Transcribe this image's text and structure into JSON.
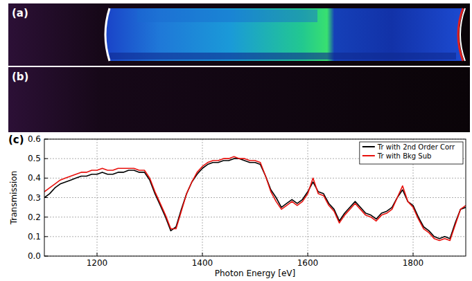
{
  "panels": [
    {
      "label": "(a)"
    },
    {
      "label": "(b)"
    },
    {
      "label": "(c)"
    }
  ],
  "chart_data": {
    "type": "line",
    "x_label": "Photon Energy [eV]",
    "y_label": "Transmission",
    "xlim": [
      1100,
      1900
    ],
    "xticks": [
      1200,
      1400,
      1600,
      1800
    ],
    "ylim": [
      0,
      0.6
    ],
    "yticks": [
      {
        "value": 0,
        "label": "0.0"
      },
      0.1,
      0.2,
      0.3,
      0.4,
      0.5,
      0.6
    ],
    "grid": true,
    "legend": "upper right",
    "x": [
      1100,
      1110,
      1120,
      1130,
      1140,
      1150,
      1160,
      1170,
      1180,
      1190,
      1200,
      1210,
      1220,
      1230,
      1240,
      1250,
      1260,
      1270,
      1280,
      1290,
      1300,
      1310,
      1320,
      1330,
      1340,
      1350,
      1360,
      1370,
      1380,
      1390,
      1400,
      1410,
      1420,
      1430,
      1440,
      1450,
      1460,
      1470,
      1480,
      1490,
      1500,
      1510,
      1520,
      1530,
      1540,
      1550,
      1560,
      1570,
      1580,
      1590,
      1600,
      1610,
      1620,
      1630,
      1640,
      1650,
      1660,
      1670,
      1680,
      1690,
      1700,
      1710,
      1720,
      1730,
      1740,
      1750,
      1760,
      1770,
      1780,
      1790,
      1800,
      1810,
      1820,
      1830,
      1840,
      1850,
      1860,
      1870,
      1880,
      1890,
      1900
    ],
    "series": [
      {
        "name": "Tr with 2nd Order Corr",
        "color": "#000000",
        "values": [
          0.3,
          0.32,
          0.35,
          0.37,
          0.38,
          0.39,
          0.4,
          0.41,
          0.41,
          0.42,
          0.42,
          0.43,
          0.42,
          0.42,
          0.43,
          0.43,
          0.44,
          0.44,
          0.43,
          0.43,
          0.39,
          0.32,
          0.26,
          0.2,
          0.13,
          0.15,
          0.24,
          0.32,
          0.38,
          0.42,
          0.45,
          0.47,
          0.48,
          0.48,
          0.49,
          0.49,
          0.5,
          0.5,
          0.49,
          0.48,
          0.48,
          0.47,
          0.41,
          0.34,
          0.3,
          0.25,
          0.27,
          0.29,
          0.27,
          0.29,
          0.33,
          0.38,
          0.33,
          0.32,
          0.27,
          0.24,
          0.18,
          0.22,
          0.25,
          0.28,
          0.25,
          0.22,
          0.21,
          0.19,
          0.22,
          0.23,
          0.25,
          0.3,
          0.34,
          0.28,
          0.26,
          0.2,
          0.15,
          0.13,
          0.1,
          0.09,
          0.1,
          0.09,
          0.17,
          0.24,
          0.25
        ]
      },
      {
        "name": "Tr with Bkg Sub",
        "color": "#e8100c",
        "values": [
          0.33,
          0.35,
          0.37,
          0.39,
          0.4,
          0.41,
          0.42,
          0.43,
          0.43,
          0.44,
          0.44,
          0.45,
          0.44,
          0.44,
          0.45,
          0.45,
          0.45,
          0.45,
          0.44,
          0.44,
          0.4,
          0.33,
          0.27,
          0.21,
          0.14,
          0.14,
          0.23,
          0.32,
          0.38,
          0.43,
          0.46,
          0.48,
          0.49,
          0.49,
          0.5,
          0.5,
          0.51,
          0.5,
          0.5,
          0.49,
          0.49,
          0.48,
          0.41,
          0.33,
          0.28,
          0.24,
          0.26,
          0.28,
          0.26,
          0.28,
          0.32,
          0.4,
          0.32,
          0.31,
          0.26,
          0.23,
          0.17,
          0.21,
          0.24,
          0.27,
          0.24,
          0.21,
          0.2,
          0.18,
          0.21,
          0.22,
          0.24,
          0.3,
          0.36,
          0.28,
          0.25,
          0.19,
          0.14,
          0.12,
          0.09,
          0.08,
          0.09,
          0.08,
          0.16,
          0.24,
          0.26
        ]
      }
    ]
  }
}
